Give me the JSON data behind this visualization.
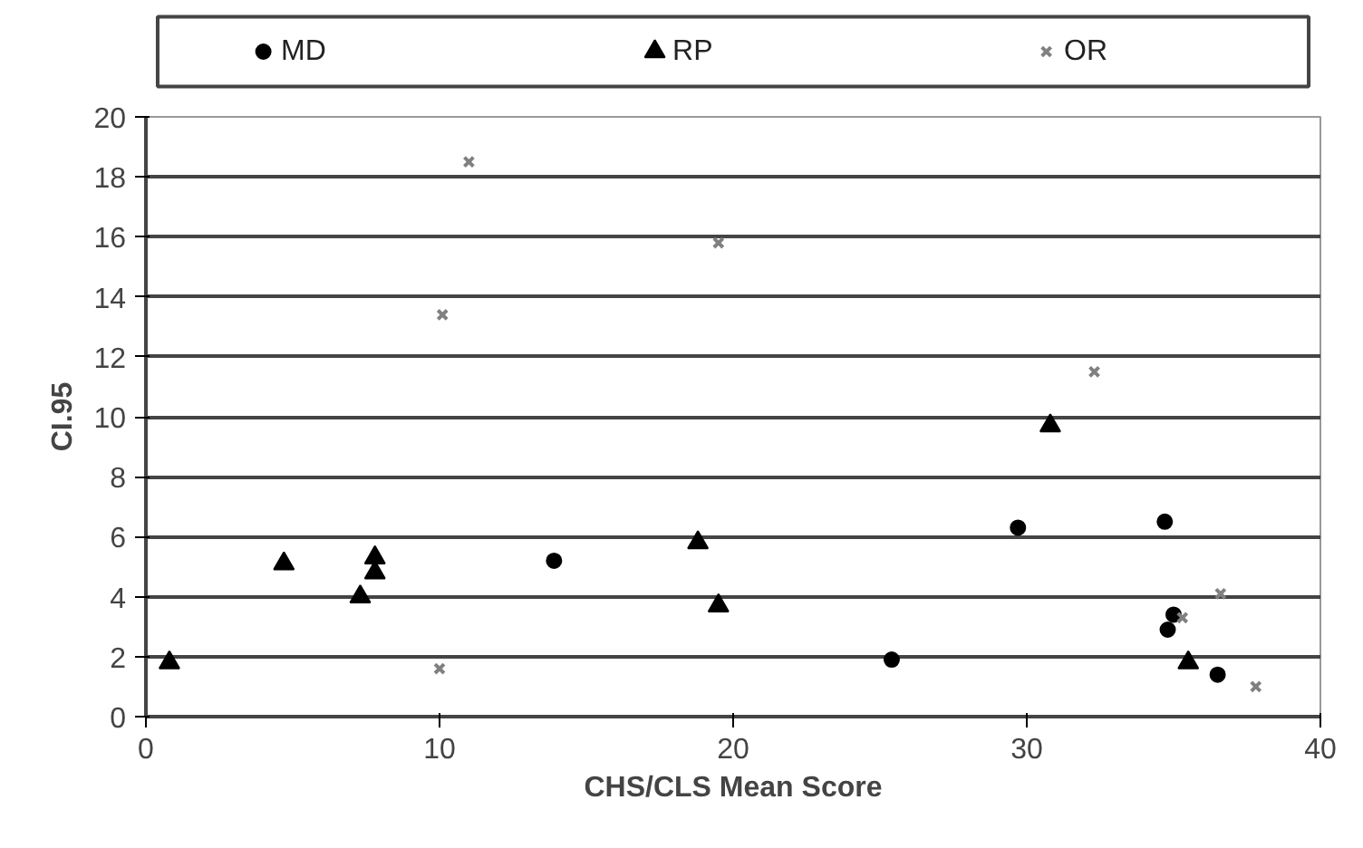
{
  "chart_data": {
    "type": "scatter",
    "xlabel": "CHS/CLS Mean Score",
    "ylabel": "CI.95",
    "xlim": [
      0,
      40
    ],
    "xticks": [
      0,
      10,
      20,
      30,
      40
    ],
    "ylim": [
      0,
      20
    ],
    "yticks": [
      0,
      2,
      4,
      6,
      8,
      10,
      12,
      14,
      16,
      18,
      20
    ],
    "grid": "y",
    "legend": "top",
    "series": [
      {
        "name": "MD",
        "color": "#000000",
        "marker": "circle",
        "x": [
          13.9,
          25.4,
          29.7,
          34.7,
          34.8,
          35.0,
          36.5
        ],
        "values": [
          5.2,
          1.9,
          6.3,
          6.5,
          2.9,
          3.4,
          1.4
        ]
      },
      {
        "name": "RP",
        "color": "#000000",
        "marker": "triangle",
        "x": [
          0.8,
          4.7,
          7.3,
          7.8,
          7.8,
          18.8,
          19.5,
          30.8,
          35.5
        ],
        "values": [
          1.8,
          5.1,
          4.0,
          5.3,
          4.8,
          5.8,
          3.7,
          9.7,
          1.8
        ]
      },
      {
        "name": "OR",
        "color": "#808080",
        "marker": "cross",
        "x": [
          11.0,
          19.5,
          10.1,
          10.0,
          32.3,
          36.6,
          35.3,
          37.8
        ],
        "values": [
          18.5,
          15.8,
          13.4,
          1.6,
          11.5,
          4.1,
          3.3,
          1.0
        ]
      }
    ]
  }
}
